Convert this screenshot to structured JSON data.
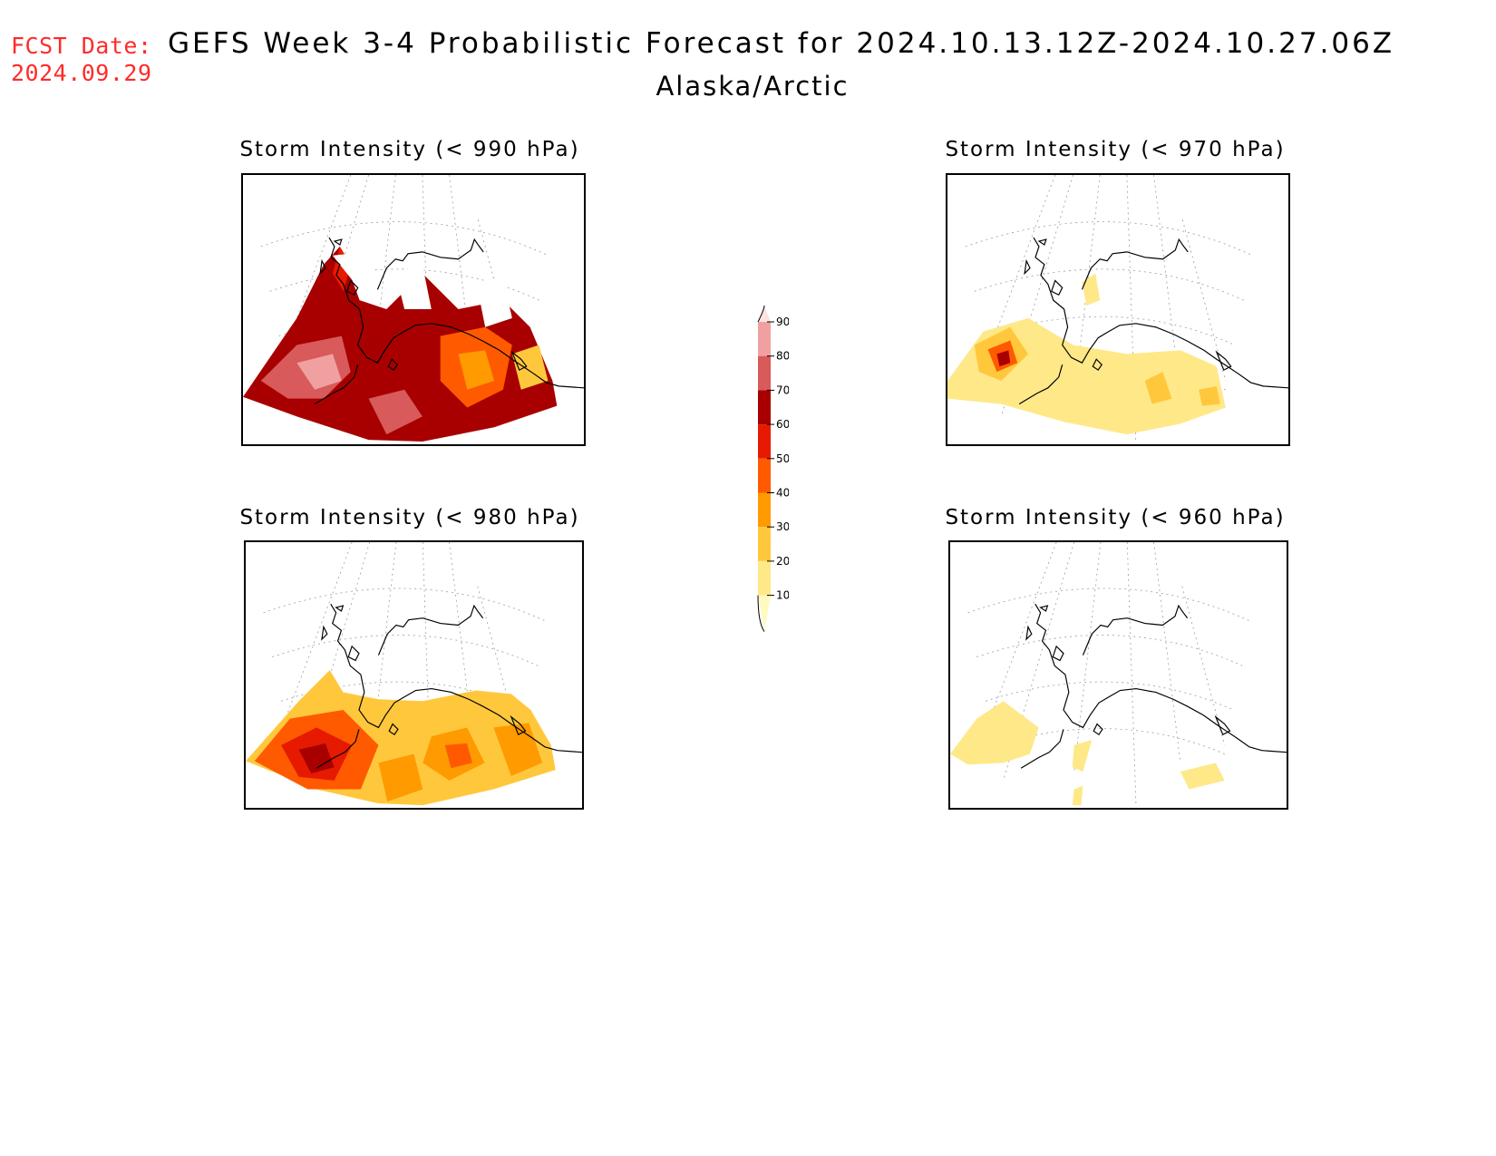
{
  "header": {
    "fcst_label": "FCST Date:",
    "fcst_date": "2024.09.29",
    "title": "GEFS Week 3-4 Probabilistic Forecast for 2024.10.13.12Z-2024.10.27.06Z",
    "subtitle": "Alaska/Arctic"
  },
  "panels": [
    {
      "id": "p990",
      "title": "Storm Intensity (< 990 hPa)",
      "level": "high"
    },
    {
      "id": "p970",
      "title": "Storm Intensity (< 970 hPa)",
      "level": "low"
    },
    {
      "id": "p980",
      "title": "Storm Intensity (< 980 hPa)",
      "level": "mid"
    },
    {
      "id": "p960",
      "title": "Storm Intensity (< 960 hPa)",
      "level": "verylow"
    }
  ],
  "colorbar": {
    "ticks": [
      "10",
      "20",
      "30",
      "40",
      "50",
      "60",
      "70",
      "80",
      "90"
    ],
    "colors": [
      "#fffbc0",
      "#ffe888",
      "#ffc83c",
      "#ff9a00",
      "#ff5a00",
      "#e61a00",
      "#a80000",
      "#d85a5a",
      "#f0a0a0",
      "#fde4e4"
    ]
  }
}
